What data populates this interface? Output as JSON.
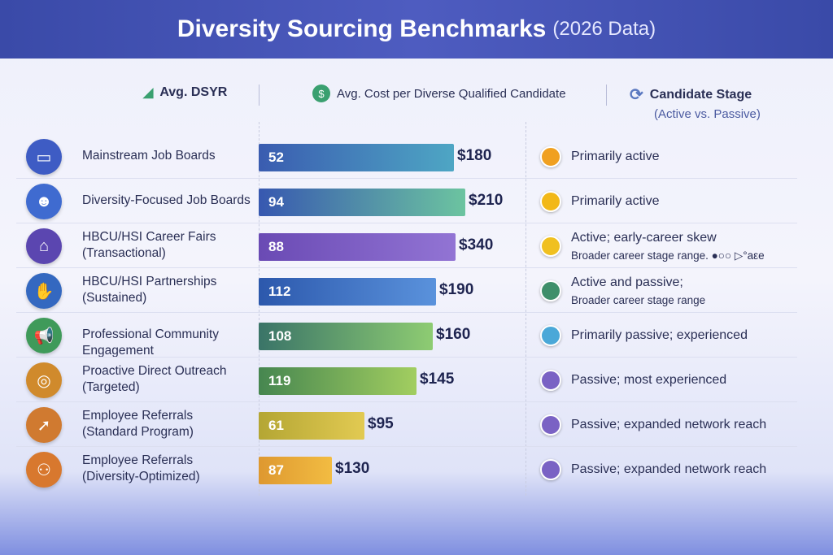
{
  "title": "Diversity Sourcing Benchmarks",
  "subtitle": "(2026 Data)",
  "headers": {
    "dsyr": "Avg. DSYR",
    "cost": "Avg. Cost per Diverse Qualified Candidate",
    "stage": "Candidate Stage",
    "stage_sub": "(Active vs. Passive)"
  },
  "chart_data": {
    "type": "bar",
    "title": "Diversity Sourcing Benchmarks (2026 Data)",
    "categories": [
      "Mainstream Job Boards",
      "Diversity-Focused Job Boards",
      "HBCU/HSI Career Fairs (Transactional)",
      "HBCU/HSI Partnerships (Sustained)",
      "Professional Community Engagement",
      "Proactive Direct Outreach (Targeted)",
      "Employee Referrals (Standard Program)",
      "Employee Referrals (Diversity-Optimized)"
    ],
    "series": [
      {
        "name": "Avg. DSYR",
        "values": [
          52,
          94,
          88,
          112,
          108,
          119,
          61,
          87
        ]
      },
      {
        "name": "Avg. Cost per Diverse Qualified Candidate",
        "values": [
          180,
          210,
          340,
          190,
          160,
          145,
          95,
          130
        ]
      }
    ],
    "cost_labels": [
      "$180",
      "$210",
      "$340",
      "$190",
      "$160",
      "$145",
      "$95",
      "$130"
    ],
    "stages": [
      "Primarily active",
      "Primarily active",
      "Active; early-career skew",
      "Active and passive;",
      "Primarily passive; experienced",
      "Passive; most experienced",
      "Passive; expanded network reach",
      "Passive; expanded network reach"
    ],
    "stage_notes": [
      "",
      "",
      "Broader career stage range. ●○○ ▷°aεe",
      "Broader career stage range",
      "",
      "",
      "",
      ""
    ],
    "bar_colors": [
      [
        "#3a5cb0",
        "#4ea6c4"
      ],
      [
        "#3758b0",
        "#6cc4a0"
      ],
      [
        "#6a4ab4",
        "#9274d4"
      ],
      [
        "#2c58ac",
        "#5a92dc"
      ],
      [
        "#3a7468",
        "#8ecc72"
      ],
      [
        "#468650",
        "#a2ce60"
      ],
      [
        "#b4a634",
        "#e2ca52"
      ],
      [
        "#de9830",
        "#f2bc42"
      ]
    ],
    "icon_colors": [
      "#3e5cc4",
      "#3f6bd0",
      "#5b46b0",
      "#3468c0",
      "#3f9a5a",
      "#d08a2c",
      "#d07a30",
      "#d8782e"
    ],
    "icon_names": [
      "monitor-icon",
      "people-icon",
      "booth-icon",
      "handshake-icon",
      "megaphone-icon",
      "target-icon",
      "referral-icon",
      "network-icon"
    ],
    "stage_colors": [
      "#f0a020",
      "#f2b818",
      "#f0c020",
      "#3f8f6a",
      "#4aa8d8",
      "#7a62c4",
      "#7a62c4",
      "#7a62c4"
    ]
  }
}
